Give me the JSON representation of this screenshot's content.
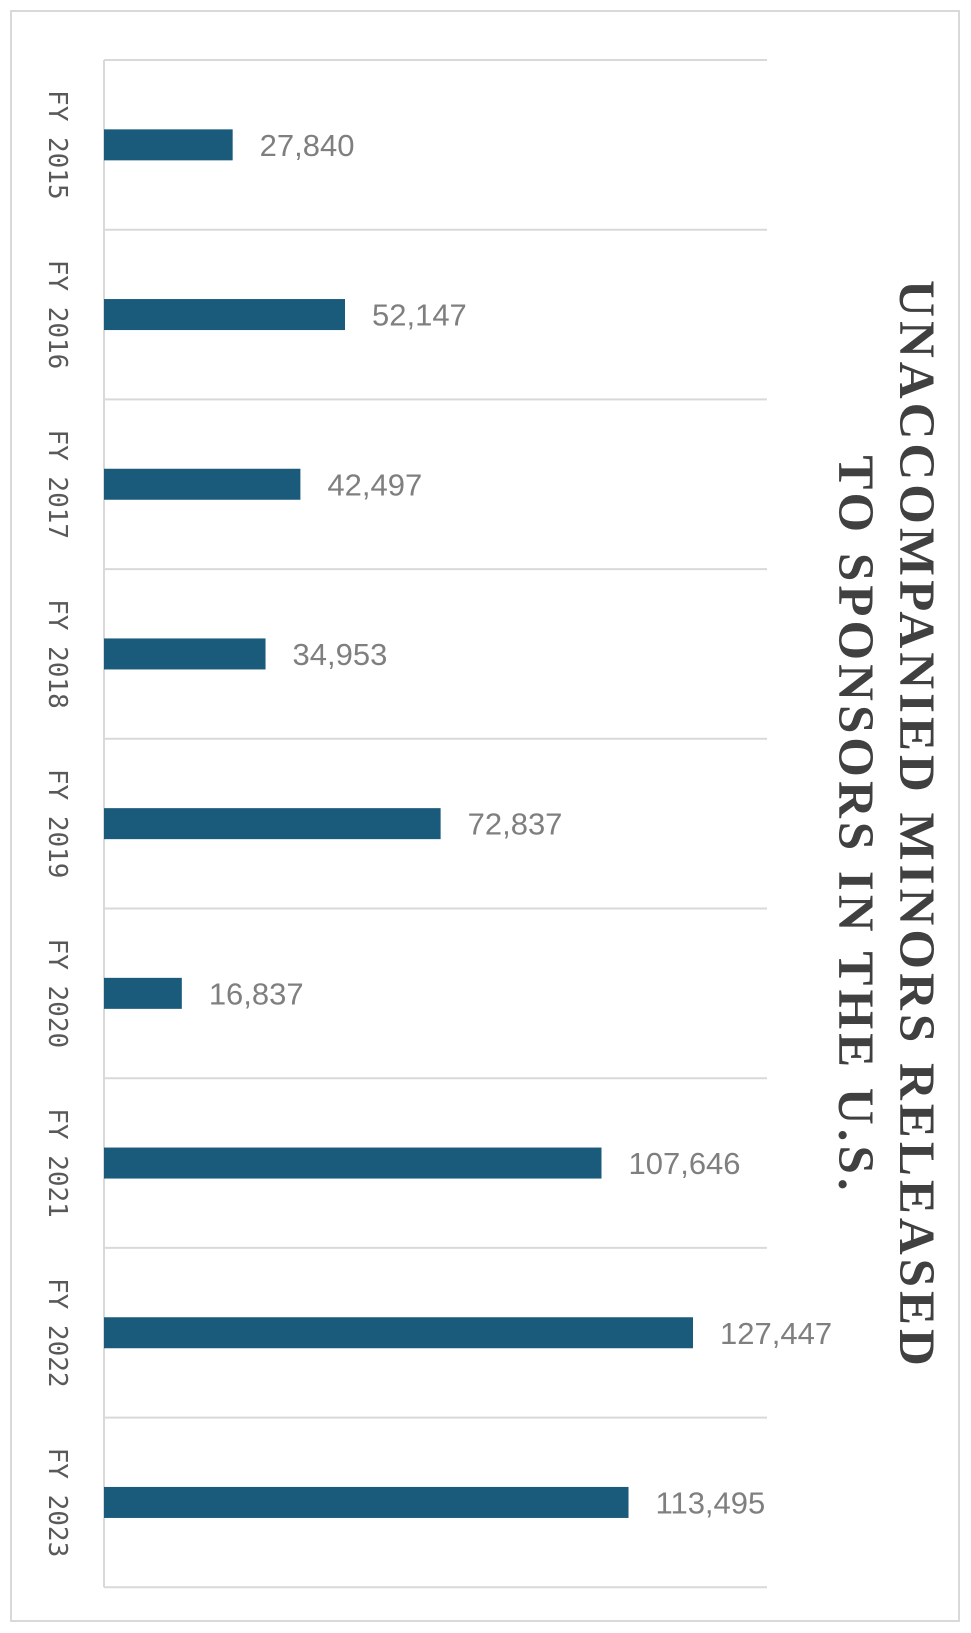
{
  "chart_data": {
    "type": "bar",
    "orientation": "horizontal",
    "title_lines": [
      "UNACCOMPANIED MINORS RELEASED",
      "TO SPONSORS IN THE U.S."
    ],
    "categories": [
      "FY 2015",
      "FY 2016",
      "FY 2017",
      "FY 2018",
      "FY 2019",
      "FY 2020",
      "FY 2021",
      "FY 2022",
      "FY 2023"
    ],
    "values": [
      27840,
      52147,
      42497,
      34953,
      72837,
      16837,
      107646,
      127447,
      113495
    ],
    "value_labels": [
      "27,840",
      "52,147",
      "42,497",
      "34,953",
      "72,837",
      "16,837",
      "107,646",
      "127,447",
      "113,495"
    ],
    "xlim": [
      0,
      140000
    ],
    "grid": true,
    "legend": "none",
    "colors": {
      "bar": "#1a5a7b",
      "grid": "#d9d9d9",
      "value_label": "#7f7f7f",
      "category_label": "#595959",
      "title": "#404040"
    }
  }
}
